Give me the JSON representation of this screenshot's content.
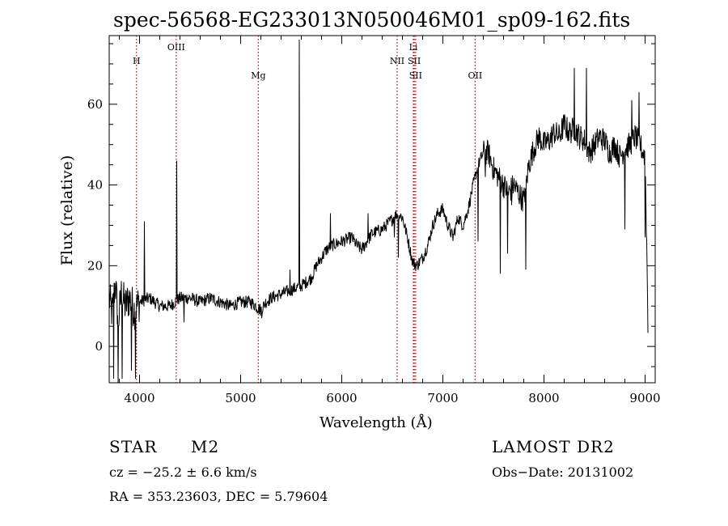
{
  "chart_data": {
    "type": "line",
    "title": "spec-56568-EG233013N050046M01_sp09-162.fits",
    "xlabel": "Wavelength (Å)",
    "ylabel": "Flux (relative)",
    "xlim": [
      3700,
      9100
    ],
    "ylim": [
      -9,
      77
    ],
    "x_ticks": [
      4000,
      5000,
      6000,
      7000,
      8000,
      9000
    ],
    "y_ticks": [
      0,
      20,
      40,
      60
    ],
    "grid": false,
    "series": [
      {
        "color": "#000000",
        "anchors": [
          [
            3700,
            12
          ],
          [
            3730,
            8
          ],
          [
            3760,
            16
          ],
          [
            3790,
            6
          ],
          [
            3820,
            13
          ],
          [
            3860,
            10
          ],
          [
            3900,
            12
          ],
          [
            3950,
            9
          ],
          [
            4000,
            11
          ],
          [
            4100,
            12
          ],
          [
            4200,
            10
          ],
          [
            4300,
            10
          ],
          [
            4400,
            12
          ],
          [
            4500,
            12
          ],
          [
            4600,
            11
          ],
          [
            4700,
            12
          ],
          [
            4800,
            11
          ],
          [
            4900,
            10
          ],
          [
            5000,
            11
          ],
          [
            5100,
            11
          ],
          [
            5150,
            10
          ],
          [
            5200,
            9
          ],
          [
            5250,
            11
          ],
          [
            5300,
            12
          ],
          [
            5400,
            13
          ],
          [
            5500,
            14
          ],
          [
            5600,
            15
          ],
          [
            5700,
            17
          ],
          [
            5750,
            20
          ],
          [
            5800,
            22
          ],
          [
            5850,
            24
          ],
          [
            5900,
            25
          ],
          [
            6000,
            26
          ],
          [
            6100,
            27
          ],
          [
            6150,
            25
          ],
          [
            6200,
            24
          ],
          [
            6250,
            26
          ],
          [
            6300,
            28
          ],
          [
            6400,
            29
          ],
          [
            6480,
            31
          ],
          [
            6550,
            33
          ],
          [
            6600,
            32
          ],
          [
            6650,
            27
          ],
          [
            6700,
            21
          ],
          [
            6740,
            20
          ],
          [
            6800,
            22
          ],
          [
            6850,
            25
          ],
          [
            6900,
            30
          ],
          [
            6950,
            33
          ],
          [
            7000,
            34
          ],
          [
            7050,
            30
          ],
          [
            7100,
            27
          ],
          [
            7150,
            32
          ],
          [
            7200,
            30
          ],
          [
            7250,
            34
          ],
          [
            7300,
            40
          ],
          [
            7350,
            45
          ],
          [
            7400,
            48
          ],
          [
            7450,
            48
          ],
          [
            7500,
            44
          ],
          [
            7550,
            42
          ],
          [
            7600,
            40
          ],
          [
            7650,
            38
          ],
          [
            7700,
            40
          ],
          [
            7750,
            38
          ],
          [
            7800,
            36
          ],
          [
            7850,
            45
          ],
          [
            7900,
            49
          ],
          [
            7950,
            52
          ],
          [
            8000,
            50
          ],
          [
            8050,
            51
          ],
          [
            8100,
            53
          ],
          [
            8150,
            52
          ],
          [
            8200,
            55
          ],
          [
            8250,
            53
          ],
          [
            8300,
            54
          ],
          [
            8350,
            52
          ],
          [
            8400,
            51
          ],
          [
            8450,
            48
          ],
          [
            8500,
            50
          ],
          [
            8550,
            52
          ],
          [
            8600,
            51
          ],
          [
            8650,
            48
          ],
          [
            8700,
            50
          ],
          [
            8750,
            47
          ],
          [
            8800,
            49
          ],
          [
            8850,
            50
          ],
          [
            8900,
            52
          ],
          [
            8950,
            50
          ],
          [
            9000,
            47
          ],
          [
            9020,
            20
          ],
          [
            9030,
            0
          ]
        ],
        "spikes": [
          [
            3745,
            -8
          ],
          [
            3790,
            -10
          ],
          [
            3830,
            -8
          ],
          [
            3920,
            -6
          ],
          [
            3960,
            -8
          ],
          [
            4050,
            31
          ],
          [
            4370,
            46
          ],
          [
            4440,
            6
          ],
          [
            5210,
            7
          ],
          [
            5490,
            19
          ],
          [
            5580,
            76
          ],
          [
            5890,
            33
          ],
          [
            6260,
            33
          ],
          [
            6520,
            27
          ],
          [
            6560,
            22
          ],
          [
            7350,
            26
          ],
          [
            7420,
            42
          ],
          [
            7570,
            18
          ],
          [
            7640,
            23
          ],
          [
            7680,
            35
          ],
          [
            7820,
            19
          ],
          [
            8300,
            69
          ],
          [
            8420,
            69
          ],
          [
            8800,
            29
          ],
          [
            8870,
            61
          ],
          [
            8940,
            63
          ],
          [
            8970,
            48
          ],
          [
            9000,
            27
          ]
        ]
      }
    ],
    "lines": [
      {
        "label": "H",
        "x": 3970,
        "tier": 1,
        "color": "#c00000"
      },
      {
        "label": "OIII",
        "x": 4363,
        "tier": 0,
        "color": "#c00000"
      },
      {
        "label": "Mg",
        "x": 5175,
        "tier": 2,
        "color": "#c00000"
      },
      {
        "label": "NII",
        "x": 6548,
        "tier": 1,
        "color": "#c00000"
      },
      {
        "label": "Li",
        "x": 6708,
        "tier": 0,
        "color": "#c00000"
      },
      {
        "label": "SII",
        "x": 6717,
        "tier": 1,
        "color": "#c00000"
      },
      {
        "label": "SII",
        "x": 6731,
        "tier": 2,
        "color": "#c00000"
      },
      {
        "label": "OII",
        "x": 7319,
        "tier": 2,
        "color": "#c00000"
      }
    ]
  },
  "info": {
    "class": "STAR",
    "subclass": "M2",
    "survey": "LAMOST DR2",
    "cz": "cz = −25.2 ± 6.6 km/s",
    "obs_date": "Obs−Date: 20131002",
    "coords": "RA = 353.23603, DEC =   5.79604"
  }
}
